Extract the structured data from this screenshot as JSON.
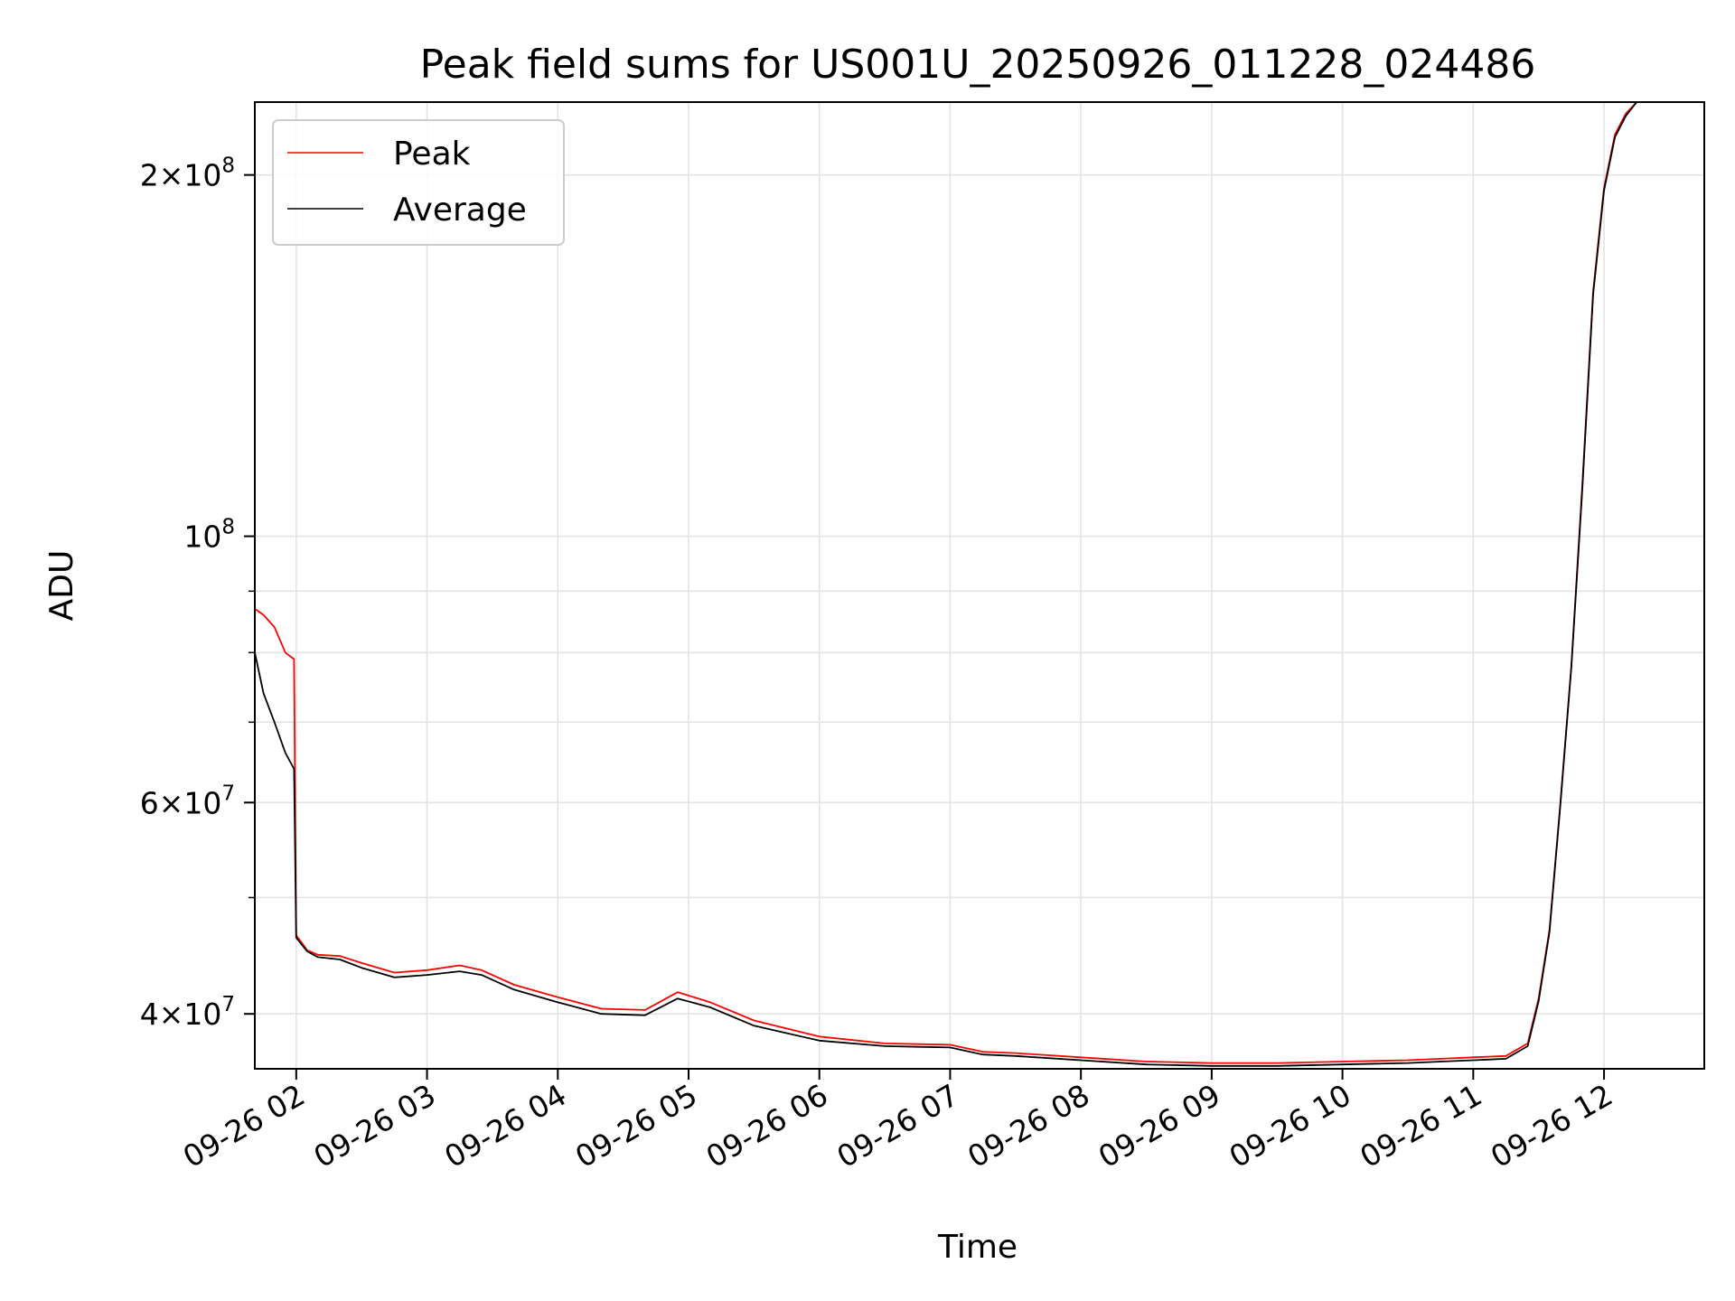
{
  "chart_data": {
    "type": "line",
    "title": "Peak field sums for US001U_20250926_011228_024486",
    "xlabel": "Time",
    "ylabel": "ADU",
    "xscale": "time",
    "yscale": "log",
    "xlim": [
      "2025-09-26 01:41",
      "2025-09-26 12:46"
    ],
    "ylim": [
      36000000,
      230000000
    ],
    "grid": true,
    "legend": {
      "position": "top-left"
    },
    "x_ticks": [
      {
        "value": "2025-09-26 02:00",
        "label": "09-26 02"
      },
      {
        "value": "2025-09-26 03:00",
        "label": "09-26 03"
      },
      {
        "value": "2025-09-26 04:00",
        "label": "09-26 04"
      },
      {
        "value": "2025-09-26 05:00",
        "label": "09-26 05"
      },
      {
        "value": "2025-09-26 06:00",
        "label": "09-26 06"
      },
      {
        "value": "2025-09-26 07:00",
        "label": "09-26 07"
      },
      {
        "value": "2025-09-26 08:00",
        "label": "09-26 08"
      },
      {
        "value": "2025-09-26 09:00",
        "label": "09-26 09"
      },
      {
        "value": "2025-09-26 10:00",
        "label": "09-26 10"
      },
      {
        "value": "2025-09-26 11:00",
        "label": "09-26 11"
      },
      {
        "value": "2025-09-26 12:00",
        "label": "09-26 12"
      }
    ],
    "y_ticks_major": [
      {
        "value": 40000000,
        "base": "4×10",
        "exp": "7"
      },
      {
        "value": 60000000,
        "base": "6×10",
        "exp": "7"
      },
      {
        "value": 100000000,
        "base": "10",
        "exp": "8"
      },
      {
        "value": 200000000,
        "base": "2×10",
        "exp": "8"
      }
    ],
    "y_ticks_minor": [
      50000000,
      70000000,
      80000000,
      90000000
    ],
    "series": [
      {
        "name": "Peak",
        "color": "#ff0000",
        "x": [
          "2025-09-26 01:41",
          "2025-09-26 01:45",
          "2025-09-26 01:50",
          "2025-09-26 01:55",
          "2025-09-26 01:59",
          "2025-09-26 02:00",
          "2025-09-26 02:05",
          "2025-09-26 02:10",
          "2025-09-26 02:20",
          "2025-09-26 02:30",
          "2025-09-26 02:45",
          "2025-09-26 03:00",
          "2025-09-26 03:15",
          "2025-09-26 03:25",
          "2025-09-26 03:40",
          "2025-09-26 04:00",
          "2025-09-26 04:20",
          "2025-09-26 04:40",
          "2025-09-26 04:55",
          "2025-09-26 05:10",
          "2025-09-26 05:30",
          "2025-09-26 06:00",
          "2025-09-26 06:30",
          "2025-09-26 07:00",
          "2025-09-26 07:15",
          "2025-09-26 07:30",
          "2025-09-26 08:00",
          "2025-09-26 08:30",
          "2025-09-26 09:00",
          "2025-09-26 09:30",
          "2025-09-26 10:00",
          "2025-09-26 10:30",
          "2025-09-26 10:45",
          "2025-09-26 11:00",
          "2025-09-26 11:15",
          "2025-09-26 11:25",
          "2025-09-26 11:30",
          "2025-09-26 11:35",
          "2025-09-26 11:40",
          "2025-09-26 11:45",
          "2025-09-26 11:50",
          "2025-09-26 11:55",
          "2025-09-26 12:00",
          "2025-09-26 12:05",
          "2025-09-26 12:10",
          "2025-09-26 12:15"
        ],
        "y": [
          87000000,
          86000000,
          84000000,
          80000000,
          79000000,
          46500000,
          45200000,
          44800000,
          44700000,
          44100000,
          43300000,
          43500000,
          43900000,
          43500000,
          42300000,
          41300000,
          40400000,
          40300000,
          41700000,
          40900000,
          39500000,
          38300000,
          37800000,
          37700000,
          37200000,
          37100000,
          36800000,
          36500000,
          36400000,
          36400000,
          36500000,
          36600000,
          36700000,
          36800000,
          36900000,
          37800000,
          41200000,
          47000000,
          60000000,
          78000000,
          110000000,
          160000000,
          195000000,
          216000000,
          225000000,
          230000000
        ]
      },
      {
        "name": "Average",
        "color": "#000000",
        "x": [
          "2025-09-26 01:41",
          "2025-09-26 01:45",
          "2025-09-26 01:50",
          "2025-09-26 01:55",
          "2025-09-26 01:59",
          "2025-09-26 02:00",
          "2025-09-26 02:05",
          "2025-09-26 02:10",
          "2025-09-26 02:20",
          "2025-09-26 02:30",
          "2025-09-26 02:45",
          "2025-09-26 03:00",
          "2025-09-26 03:15",
          "2025-09-26 03:25",
          "2025-09-26 03:40",
          "2025-09-26 04:00",
          "2025-09-26 04:20",
          "2025-09-26 04:40",
          "2025-09-26 04:55",
          "2025-09-26 05:10",
          "2025-09-26 05:30",
          "2025-09-26 06:00",
          "2025-09-26 06:30",
          "2025-09-26 07:00",
          "2025-09-26 07:15",
          "2025-09-26 07:30",
          "2025-09-26 08:00",
          "2025-09-26 08:30",
          "2025-09-26 09:00",
          "2025-09-26 09:30",
          "2025-09-26 10:00",
          "2025-09-26 10:30",
          "2025-09-26 10:45",
          "2025-09-26 11:00",
          "2025-09-26 11:15",
          "2025-09-26 11:25",
          "2025-09-26 11:30",
          "2025-09-26 11:35",
          "2025-09-26 11:40",
          "2025-09-26 11:45",
          "2025-09-26 11:50",
          "2025-09-26 11:55",
          "2025-09-26 12:00",
          "2025-09-26 12:05",
          "2025-09-26 12:10",
          "2025-09-26 12:15"
        ],
        "y": [
          80000000,
          74000000,
          70000000,
          66000000,
          64000000,
          46300000,
          45100000,
          44600000,
          44400000,
          43700000,
          42900000,
          43100000,
          43400000,
          43100000,
          41900000,
          40900000,
          40000000,
          39900000,
          41200000,
          40500000,
          39100000,
          38000000,
          37600000,
          37500000,
          37000000,
          36900000,
          36600000,
          36300000,
          36200000,
          36200000,
          36300000,
          36400000,
          36500000,
          36600000,
          36700000,
          37600000,
          41000000,
          46800000,
          59800000,
          77800000,
          109000000,
          159000000,
          194000000,
          215000000,
          224000000,
          230000000
        ]
      }
    ]
  }
}
